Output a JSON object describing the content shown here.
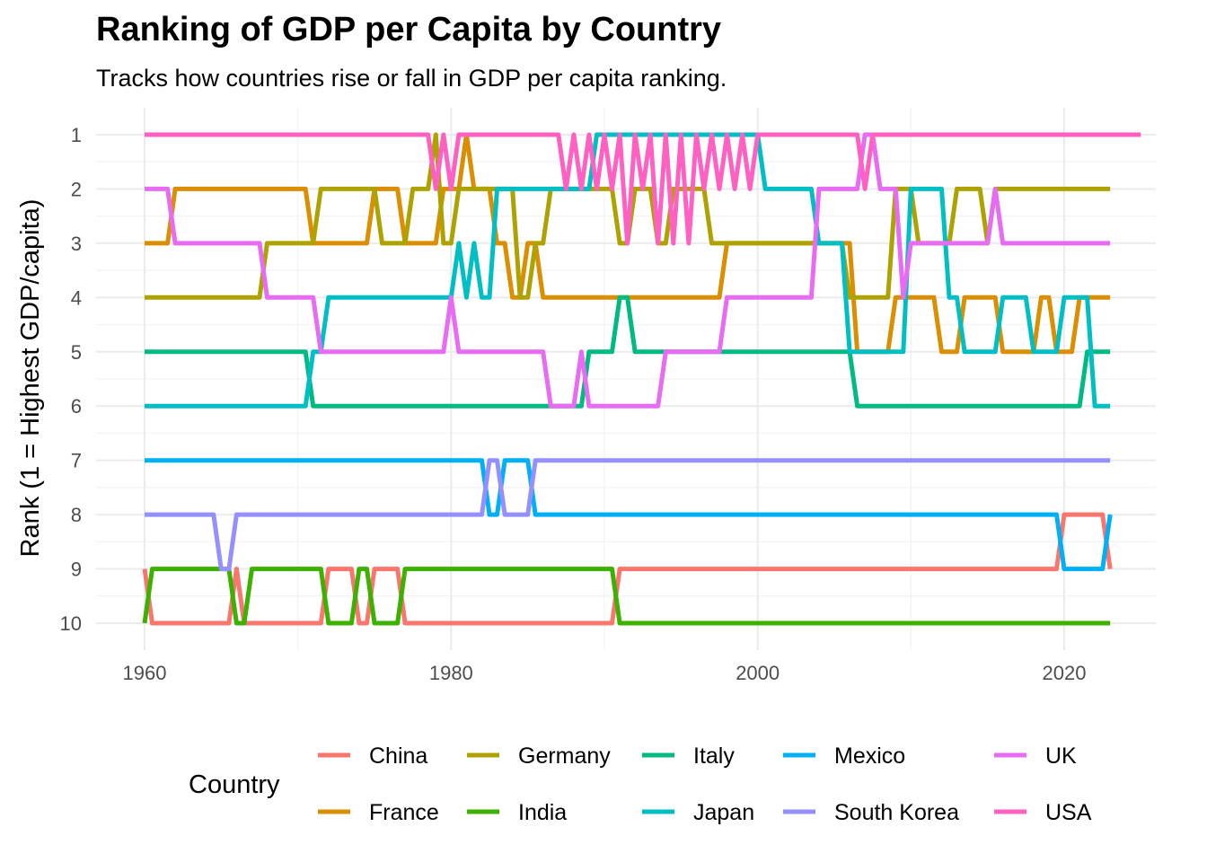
{
  "chart_data": {
    "type": "line",
    "title": "Ranking of GDP per Capita by Country",
    "subtitle": "Tracks how countries rise or fall in GDP per capita ranking.",
    "xlabel": "",
    "ylabel": "Rank (1 = Highest GDP/capita)",
    "xlim": [
      1960,
      2025
    ],
    "ylim": [
      10,
      1
    ],
    "y_reversed": true,
    "x_ticks": [
      "1960",
      "1980",
      "2000",
      "2020"
    ],
    "y_ticks": [
      "1",
      "2",
      "3",
      "4",
      "5",
      "6",
      "7",
      "8",
      "9",
      "10"
    ],
    "grid": true,
    "legend_title": "Country",
    "legend_position": "bottom",
    "series": [
      {
        "name": "China",
        "color": "#F8766D",
        "points": [
          [
            1960,
            9
          ],
          [
            1960.5,
            10
          ],
          [
            1965.5,
            10
          ],
          [
            1966,
            9
          ],
          [
            1966.5,
            10
          ],
          [
            1971.5,
            10
          ],
          [
            1972,
            9
          ],
          [
            1973.5,
            9
          ],
          [
            1974,
            10
          ],
          [
            1974.5,
            10
          ],
          [
            1975,
            9
          ],
          [
            1976.5,
            9
          ],
          [
            1977,
            10
          ],
          [
            1990.5,
            10
          ],
          [
            1991,
            9
          ],
          [
            2019.5,
            9
          ],
          [
            2020,
            8
          ],
          [
            2022.5,
            8
          ],
          [
            2023,
            9
          ]
        ]
      },
      {
        "name": "France",
        "color": "#DB8E00",
        "points": [
          [
            1960,
            3
          ],
          [
            1961.5,
            3
          ],
          [
            1962,
            2
          ],
          [
            1970.5,
            2
          ],
          [
            1971,
            3
          ],
          [
            1974.5,
            3
          ],
          [
            1975,
            2
          ],
          [
            1976.5,
            2
          ],
          [
            1977,
            3
          ],
          [
            1979,
            3
          ],
          [
            1979.5,
            2
          ],
          [
            1980.5,
            2
          ],
          [
            1981,
            1
          ],
          [
            1981.5,
            2
          ],
          [
            1982.5,
            2
          ],
          [
            1983,
            3
          ],
          [
            1983.5,
            3
          ],
          [
            1984,
            4
          ],
          [
            1984.5,
            4
          ],
          [
            1985,
            3
          ],
          [
            1985.5,
            3
          ],
          [
            1986,
            4
          ],
          [
            1997.5,
            4
          ],
          [
            1998,
            3
          ],
          [
            2006,
            3
          ],
          [
            2006.5,
            5
          ],
          [
            2008.5,
            5
          ],
          [
            2009,
            4
          ],
          [
            2011.5,
            4
          ],
          [
            2012,
            5
          ],
          [
            2013,
            5
          ],
          [
            2013.5,
            4
          ],
          [
            2015.5,
            4
          ],
          [
            2016,
            5
          ],
          [
            2018,
            5
          ],
          [
            2018.5,
            4
          ],
          [
            2019,
            4
          ],
          [
            2019.5,
            5
          ],
          [
            2020.5,
            5
          ],
          [
            2021,
            4
          ],
          [
            2023,
            4
          ]
        ]
      },
      {
        "name": "Germany",
        "color": "#AEA200",
        "points": [
          [
            1960,
            4
          ],
          [
            1967.5,
            4
          ],
          [
            1968,
            3
          ],
          [
            1971,
            3
          ],
          [
            1971.5,
            2
          ],
          [
            1975,
            2
          ],
          [
            1975.5,
            3
          ],
          [
            1977,
            3
          ],
          [
            1977.5,
            2
          ],
          [
            1978.5,
            2
          ],
          [
            1979,
            1
          ],
          [
            1979.5,
            3
          ],
          [
            1980,
            3
          ],
          [
            1980.5,
            2
          ],
          [
            1984,
            2
          ],
          [
            1984.5,
            4
          ],
          [
            1985,
            4
          ],
          [
            1985.5,
            3
          ],
          [
            1986,
            3
          ],
          [
            1986.5,
            2
          ],
          [
            1990.5,
            2
          ],
          [
            1991,
            3
          ],
          [
            1991.5,
            3
          ],
          [
            1992,
            2
          ],
          [
            1993,
            2
          ],
          [
            1993.5,
            3
          ],
          [
            1994,
            3
          ],
          [
            1994.5,
            2
          ],
          [
            1996.5,
            2
          ],
          [
            1997,
            3
          ],
          [
            2005.5,
            3
          ],
          [
            2006,
            4
          ],
          [
            2008.5,
            4
          ],
          [
            2009,
            2
          ],
          [
            2010,
            2
          ],
          [
            2010.5,
            3
          ],
          [
            2012.5,
            3
          ],
          [
            2013,
            2
          ],
          [
            2014.5,
            2
          ],
          [
            2015,
            3
          ],
          [
            2015.5,
            2
          ],
          [
            2023,
            2
          ]
        ]
      },
      {
        "name": "India",
        "color": "#3DB100",
        "points": [
          [
            1960,
            10
          ],
          [
            1960.5,
            9
          ],
          [
            1965.5,
            9
          ],
          [
            1966,
            10
          ],
          [
            1966.5,
            10
          ],
          [
            1967,
            9
          ],
          [
            1971.5,
            9
          ],
          [
            1972,
            10
          ],
          [
            1973.5,
            10
          ],
          [
            1974,
            9
          ],
          [
            1974.5,
            9
          ],
          [
            1975,
            10
          ],
          [
            1976.5,
            10
          ],
          [
            1977,
            9
          ],
          [
            1990.5,
            9
          ],
          [
            1991,
            10
          ],
          [
            2023,
            10
          ]
        ]
      },
      {
        "name": "Italy",
        "color": "#00BA83",
        "points": [
          [
            1960,
            5
          ],
          [
            1970.5,
            5
          ],
          [
            1971,
            6
          ],
          [
            1988.5,
            6
          ],
          [
            1989,
            5
          ],
          [
            1990.5,
            5
          ],
          [
            1991,
            4
          ],
          [
            1991.5,
            4
          ],
          [
            1992,
            5
          ],
          [
            2006,
            5
          ],
          [
            2006.5,
            6
          ],
          [
            2021,
            6
          ],
          [
            2021.5,
            5
          ],
          [
            2023,
            5
          ]
        ]
      },
      {
        "name": "Japan",
        "color": "#00BFC4",
        "points": [
          [
            1960,
            6
          ],
          [
            1970.5,
            6
          ],
          [
            1971,
            5
          ],
          [
            1971.5,
            5
          ],
          [
            1972,
            4
          ],
          [
            1980,
            4
          ],
          [
            1980.5,
            3
          ],
          [
            1981,
            4
          ],
          [
            1981.5,
            3
          ],
          [
            1982,
            4
          ],
          [
            1982.5,
            4
          ],
          [
            1983,
            2
          ],
          [
            1989,
            2
          ],
          [
            1989.5,
            1
          ],
          [
            2000,
            1
          ],
          [
            2000.5,
            2
          ],
          [
            2003.5,
            2
          ],
          [
            2004,
            3
          ],
          [
            2005.5,
            3
          ],
          [
            2006,
            5
          ],
          [
            2009.5,
            5
          ],
          [
            2010,
            2
          ],
          [
            2012,
            2
          ],
          [
            2012.5,
            4
          ],
          [
            2013,
            4
          ],
          [
            2013.5,
            5
          ],
          [
            2015.5,
            5
          ],
          [
            2016,
            4
          ],
          [
            2017.5,
            4
          ],
          [
            2018,
            5
          ],
          [
            2019.5,
            5
          ],
          [
            2020,
            4
          ],
          [
            2021.5,
            4
          ],
          [
            2022,
            6
          ],
          [
            2023,
            6
          ]
        ]
      },
      {
        "name": "Mexico",
        "color": "#00B0F6",
        "points": [
          [
            1960,
            7
          ],
          [
            1982,
            7
          ],
          [
            1982.5,
            8
          ],
          [
            1983,
            8
          ],
          [
            1983.5,
            7
          ],
          [
            1985,
            7
          ],
          [
            1985.5,
            8
          ],
          [
            2019.5,
            8
          ],
          [
            2020,
            9
          ],
          [
            2022.5,
            9
          ],
          [
            2023,
            8
          ]
        ]
      },
      {
        "name": "South Korea",
        "color": "#9590FF",
        "points": [
          [
            1960,
            8
          ],
          [
            1964.5,
            8
          ],
          [
            1965,
            9
          ],
          [
            1965.5,
            9
          ],
          [
            1966,
            8
          ],
          [
            1982,
            8
          ],
          [
            1982.5,
            7
          ],
          [
            1983,
            7
          ],
          [
            1983.5,
            8
          ],
          [
            1985,
            8
          ],
          [
            1985.5,
            7
          ],
          [
            2023,
            7
          ]
        ]
      },
      {
        "name": "UK",
        "color": "#E76BF3",
        "points": [
          [
            1960,
            2
          ],
          [
            1961.5,
            2
          ],
          [
            1962,
            3
          ],
          [
            1967.5,
            3
          ],
          [
            1968,
            4
          ],
          [
            1971,
            4
          ],
          [
            1971.5,
            5
          ],
          [
            1979.5,
            5
          ],
          [
            1980,
            4
          ],
          [
            1980.5,
            5
          ],
          [
            1986,
            5
          ],
          [
            1986.5,
            6
          ],
          [
            1988,
            6
          ],
          [
            1988.5,
            5
          ],
          [
            1989,
            6
          ],
          [
            1993.5,
            6
          ],
          [
            1994,
            5
          ],
          [
            1997.5,
            5
          ],
          [
            1998,
            4
          ],
          [
            2003.5,
            4
          ],
          [
            2004,
            2
          ],
          [
            2006.5,
            2
          ],
          [
            2007,
            1
          ],
          [
            2007.5,
            1
          ],
          [
            2008,
            2
          ],
          [
            2009,
            2
          ],
          [
            2009.5,
            4
          ],
          [
            2010,
            3
          ],
          [
            2015,
            3
          ],
          [
            2015.5,
            2
          ],
          [
            2016,
            3
          ],
          [
            2023,
            3
          ]
        ]
      },
      {
        "name": "USA",
        "color": "#FF61C3",
        "points": [
          [
            1960,
            1
          ],
          [
            1978.5,
            1
          ],
          [
            1979,
            2
          ],
          [
            1979.5,
            1
          ],
          [
            1980,
            2
          ],
          [
            1980.5,
            1
          ],
          [
            1987,
            1
          ],
          [
            1987.5,
            2
          ],
          [
            1988,
            1
          ],
          [
            1988.5,
            2
          ],
          [
            1989,
            1
          ],
          [
            1989.5,
            2
          ],
          [
            1990,
            1
          ],
          [
            1990.5,
            2
          ],
          [
            1991,
            1
          ],
          [
            1991.5,
            3
          ],
          [
            1992,
            1
          ],
          [
            1992.5,
            2
          ],
          [
            1993,
            1
          ],
          [
            1993.5,
            3
          ],
          [
            1994,
            1
          ],
          [
            1994.5,
            3
          ],
          [
            1995,
            1
          ],
          [
            1995.5,
            3
          ],
          [
            1996,
            1
          ],
          [
            1996.5,
            2
          ],
          [
            1997,
            1
          ],
          [
            1997.5,
            2
          ],
          [
            1998,
            1
          ],
          [
            1998.5,
            2
          ],
          [
            1999,
            1
          ],
          [
            1999.5,
            2
          ],
          [
            2000,
            1
          ],
          [
            2006.5,
            1
          ],
          [
            2007,
            2
          ],
          [
            2007.5,
            1
          ],
          [
            2025,
            1
          ]
        ]
      }
    ]
  }
}
